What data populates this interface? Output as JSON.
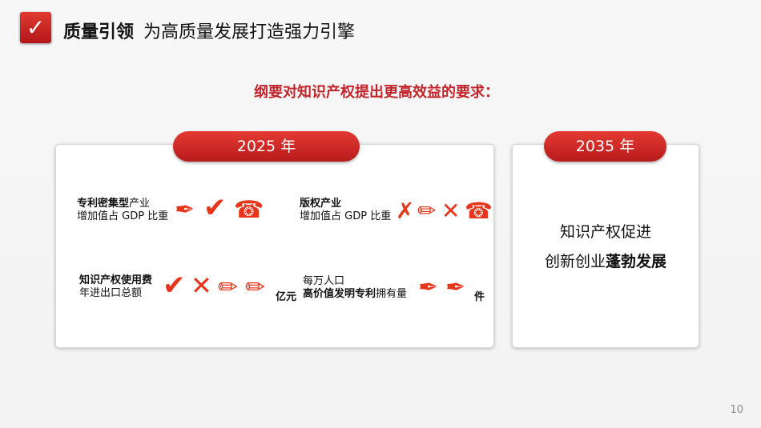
{
  "header": {
    "icon": "checkmark-icon",
    "title_bold": "质量引领",
    "title_rest": "为高质量发展打造强力引擎"
  },
  "subheading": "纲要对知识产权提出更高效益的要求：",
  "card_2025": {
    "label": "2025 年",
    "items": [
      {
        "line1": [
          {
            "t": "专利密集型",
            "b": true
          },
          {
            "t": "产业",
            "b": false
          }
        ],
        "line2": "增加值占 GDP 比重",
        "glyphs": [
          "pen-nib-icon",
          "checkmark-icon",
          "telephone-icon"
        ],
        "unit": ""
      },
      {
        "line1": [
          {
            "t": "版权产业",
            "b": true
          },
          {
            "t": "",
            "b": false
          }
        ],
        "line2": "增加值占 GDP 比重",
        "glyphs": [
          "x-mark-icon",
          "pencil-icon",
          "x-icon",
          "telephone-icon"
        ],
        "unit": ""
      },
      {
        "line1": [
          {
            "t": "知识产权使用费",
            "b": true
          },
          {
            "t": "",
            "b": false
          }
        ],
        "line2": "年进出口总额",
        "glyphs": [
          "checkmark-icon",
          "x-icon",
          "pencil-icon",
          "pencil-icon"
        ],
        "unit": "亿元"
      },
      {
        "line1": [
          {
            "t": "每万人口",
            "b": false
          },
          {
            "t": "",
            "b": false
          }
        ],
        "line2_parts": [
          {
            "t": "高价值发明专利",
            "b": true
          },
          {
            "t": "拥有量",
            "b": false
          }
        ],
        "glyphs": [
          "pen-nib-icon",
          "pen-nib-filled-icon"
        ],
        "unit": "件"
      }
    ]
  },
  "card_2035": {
    "label": "2035 年",
    "line1": "知识产权促进",
    "line2_plain": "创新创业",
    "line2_bold": "蓬勃发展"
  },
  "page_number": "10",
  "colors": {
    "accent": "#c0262b",
    "glyph": "#e5361c"
  }
}
